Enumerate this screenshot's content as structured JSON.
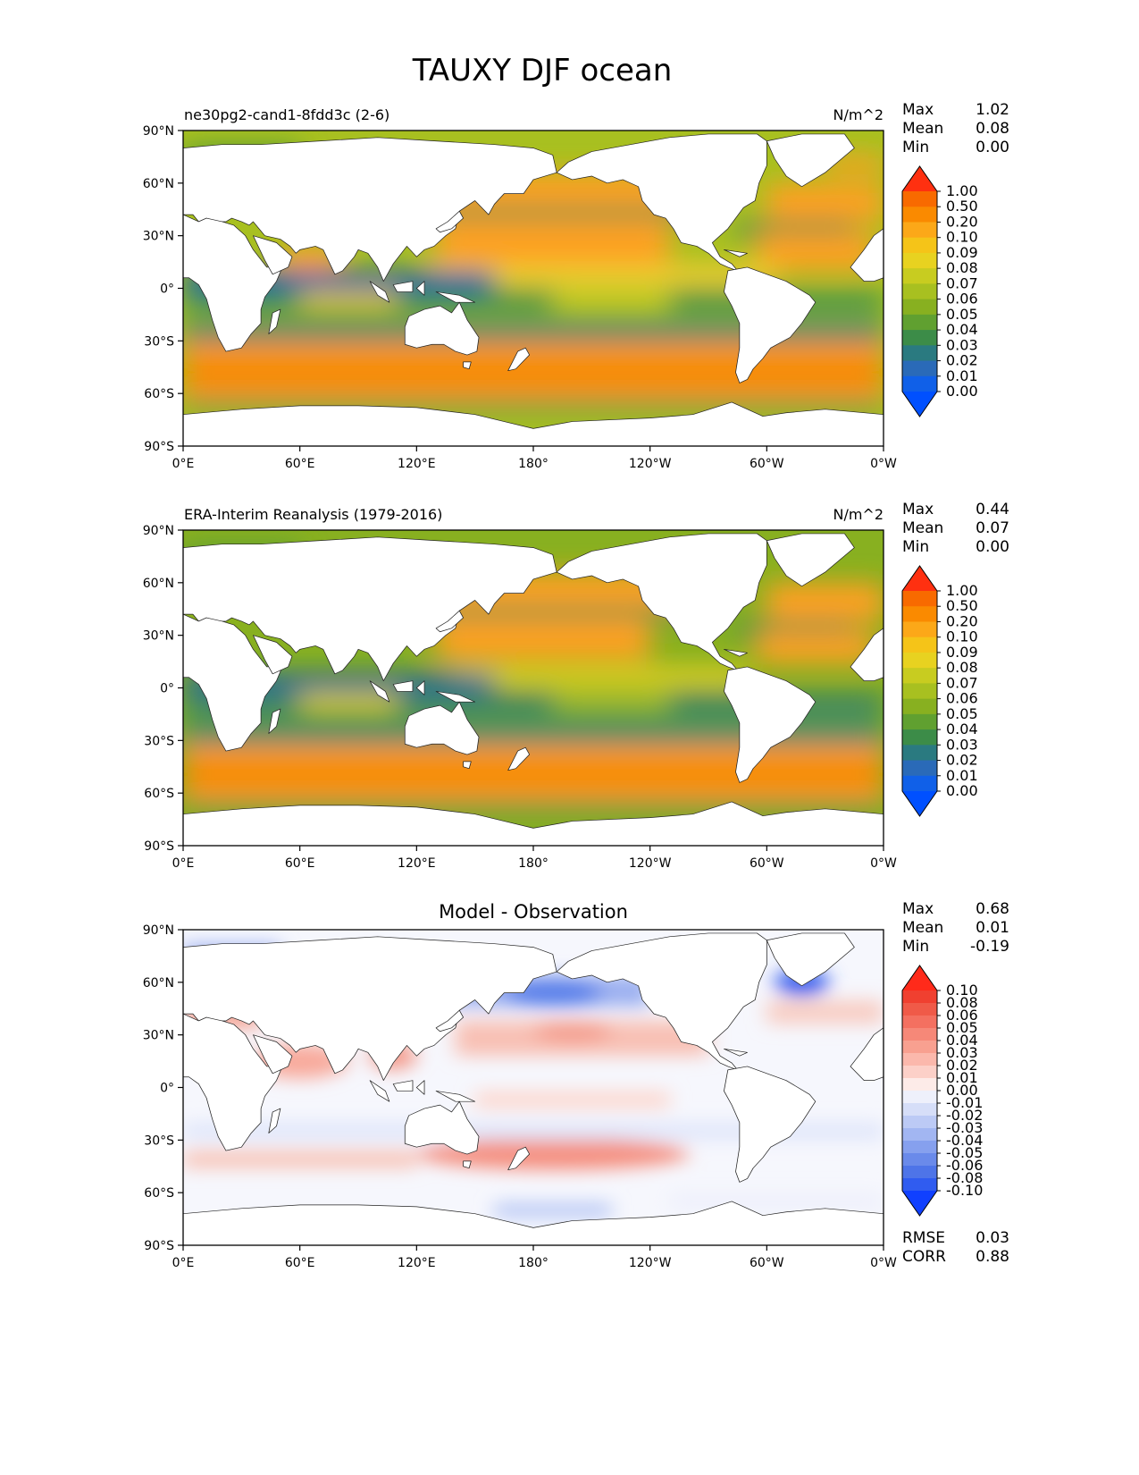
{
  "title": "TAUXY DJF ocean",
  "chart_data": [
    {
      "type": "heatmap",
      "subtitle": "ne30pg2-cand1-8fdd3c (2-6)",
      "units": "N/m^2",
      "stats": [
        {
          "label": "Max",
          "value": "1.02"
        },
        {
          "label": "Mean",
          "value": "0.08"
        },
        {
          "label": "Min",
          "value": "0.00"
        }
      ],
      "colorbar_levels": [
        "1.00",
        "0.50",
        "0.20",
        "0.10",
        "0.09",
        "0.08",
        "0.07",
        "0.06",
        "0.05",
        "0.04",
        "0.03",
        "0.02",
        "0.01",
        "0.00"
      ],
      "colorbar_colors": [
        "#ff3010",
        "#f86a00",
        "#fa8a00",
        "#fca818",
        "#f5c418",
        "#e8d220",
        "#c8cc20",
        "#a8c020",
        "#88b020",
        "#60a030",
        "#3c8c48",
        "#2a7a80",
        "#2a6ab8",
        "#1060e8",
        "#0050ff"
      ],
      "xticks": [
        "0°E",
        "60°E",
        "120°E",
        "180°",
        "120°W",
        "60°W",
        "0°W"
      ],
      "yticks": [
        "90°N",
        "60°N",
        "30°N",
        "0°",
        "30°S",
        "60°S",
        "90°S"
      ],
      "xlim": [
        0,
        360
      ],
      "ylim": [
        -90,
        90
      ]
    },
    {
      "type": "heatmap",
      "subtitle": "ERA-Interim Reanalysis (1979-2016)",
      "units": "N/m^2",
      "stats": [
        {
          "label": "Max",
          "value": "0.44"
        },
        {
          "label": "Mean",
          "value": "0.07"
        },
        {
          "label": "Min",
          "value": "0.00"
        }
      ],
      "colorbar_levels": [
        "1.00",
        "0.50",
        "0.20",
        "0.10",
        "0.09",
        "0.08",
        "0.07",
        "0.06",
        "0.05",
        "0.04",
        "0.03",
        "0.02",
        "0.01",
        "0.00"
      ],
      "colorbar_colors": [
        "#ff3010",
        "#f86a00",
        "#fa8a00",
        "#fca818",
        "#f5c418",
        "#e8d220",
        "#c8cc20",
        "#a8c020",
        "#88b020",
        "#60a030",
        "#3c8c48",
        "#2a7a80",
        "#2a6ab8",
        "#1060e8",
        "#0050ff"
      ],
      "xticks": [
        "0°E",
        "60°E",
        "120°E",
        "180°",
        "120°W",
        "60°W",
        "0°W"
      ],
      "yticks": [
        "90°N",
        "60°N",
        "30°N",
        "0°",
        "30°S",
        "60°S",
        "90°S"
      ],
      "xlim": [
        0,
        360
      ],
      "ylim": [
        -90,
        90
      ]
    },
    {
      "type": "heatmap",
      "title": "Model - Observation",
      "stats": [
        {
          "label": "Max",
          "value": "0.68"
        },
        {
          "label": "Mean",
          "value": "0.01"
        },
        {
          "label": "Min",
          "value": "-0.19"
        }
      ],
      "colorbar_levels": [
        "0.10",
        "0.08",
        "0.06",
        "0.05",
        "0.04",
        "0.03",
        "0.02",
        "0.01",
        "0.00",
        "-0.01",
        "-0.02",
        "-0.03",
        "-0.04",
        "-0.05",
        "-0.06",
        "-0.08",
        "-0.10"
      ],
      "colorbar_colors": [
        "#ff2a1a",
        "#f04030",
        "#f05a48",
        "#f47060",
        "#f68878",
        "#f8a090",
        "#fbb8ac",
        "#fcd0c8",
        "#fdebe8",
        "#eef0fb",
        "#d6def8",
        "#bccaf5",
        "#a2b6f2",
        "#86a0ee",
        "#6a8aea",
        "#4e74e8",
        "#305cf0",
        "#1040ff"
      ],
      "xticks": [
        "0°E",
        "60°E",
        "120°E",
        "180°",
        "120°W",
        "60°W",
        "0°W"
      ],
      "yticks": [
        "90°N",
        "60°N",
        "30°N",
        "0°",
        "30°S",
        "60°S",
        "90°S"
      ],
      "xlim": [
        0,
        360
      ],
      "ylim": [
        -90,
        90
      ],
      "metrics": [
        {
          "label": "RMSE",
          "value": "0.03"
        },
        {
          "label": "CORR",
          "value": "0.88"
        }
      ]
    }
  ]
}
